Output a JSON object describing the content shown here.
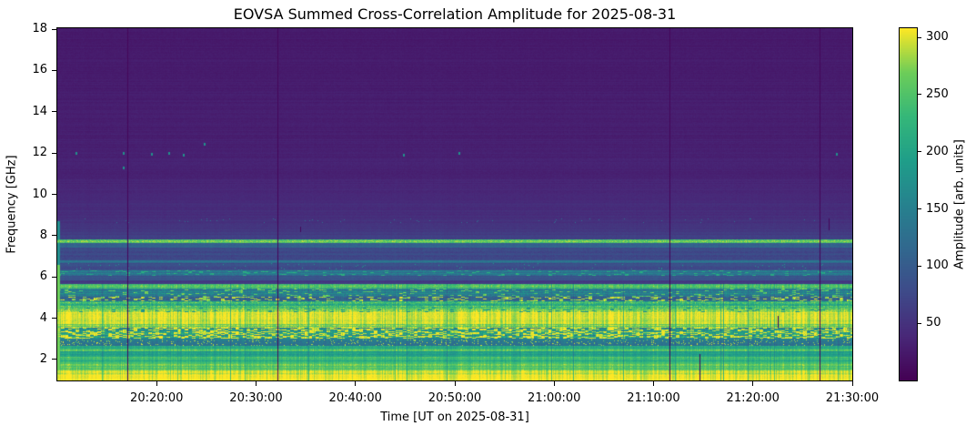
{
  "title": "EOVSA Summed Cross-Correlation Amplitude for 2025-08-31",
  "figure": {
    "background_color": "#ffffff",
    "spine_color": "#000000",
    "colormap": "viridis"
  },
  "axes": {
    "x": {
      "label": "Time [UT on 2025-08-31]",
      "start_time": "20:10:00",
      "end_time": "21:30:00",
      "tick_labels": [
        "20:20:00",
        "20:30:00",
        "20:40:00",
        "20:50:00",
        "21:00:00",
        "21:10:00",
        "21:20:00",
        "21:30:00"
      ]
    },
    "y": {
      "label": "Frequency [GHz]",
      "min_ghz": 0.98,
      "max_ghz": 18.05,
      "tick_values": [
        2,
        4,
        6,
        8,
        10,
        12,
        14,
        16,
        18
      ]
    }
  },
  "colorbar": {
    "label": "Amplitude [arb. units]",
    "tick_values": [
      50,
      100,
      150,
      200,
      250,
      300
    ],
    "vmin": 0,
    "vmax": 308
  },
  "chart_data": {
    "type": "heatmap",
    "title": "EOVSA Summed Cross-Correlation Amplitude for 2025-08-31",
    "xlabel": "Time [UT on 2025-08-31]",
    "ylabel": "Frequency [GHz]",
    "x_range_ut": [
      "20:10:00",
      "21:30:00"
    ],
    "y_range_ghz": [
      0.98,
      18.05
    ],
    "amplitude_range": [
      0,
      308
    ],
    "colorbar_label": "Amplitude [arb. units]",
    "colormap_stops": [
      [
        0.0,
        "#440154"
      ],
      [
        0.125,
        "#482878"
      ],
      [
        0.25,
        "#3e4a89"
      ],
      [
        0.375,
        "#31688e"
      ],
      [
        0.5,
        "#26828e"
      ],
      [
        0.625,
        "#1f9e89"
      ],
      [
        0.75,
        "#35b779"
      ],
      [
        0.875,
        "#6dcd59"
      ],
      [
        1.0,
        "#fde725"
      ]
    ],
    "frequency_bands": [
      {
        "f": [
          18.05,
          13.0
        ],
        "amp": 24,
        "amp2": 30,
        "noise": 4
      },
      {
        "f": [
          13.0,
          11.0
        ],
        "amp": 30,
        "amp2": 33,
        "noise": 4
      },
      {
        "f": [
          11.0,
          9.6
        ],
        "amp": 34,
        "amp2": 40,
        "noise": 4
      },
      {
        "f": [
          9.6,
          8.85
        ],
        "amp": 43,
        "amp2": 47,
        "noise": 5
      },
      {
        "f": [
          8.85,
          8.6
        ],
        "amp": 50,
        "noise": 5,
        "speckle": "dot",
        "sp_p": 0.012,
        "sp_amp": 120
      },
      {
        "f": [
          8.6,
          8.05
        ],
        "amp": 52,
        "amp2": 60,
        "noise": 5
      },
      {
        "f": [
          8.05,
          7.8
        ],
        "amp": 66,
        "noise": 6
      },
      {
        "f": [
          7.8,
          7.65
        ],
        "amp": 250,
        "noise": 28
      },
      {
        "f": [
          7.65,
          7.4
        ],
        "amp": 110,
        "noise": 12
      },
      {
        "f": [
          7.4,
          6.8
        ],
        "amp": 78,
        "noise": 9
      },
      {
        "f": [
          6.8,
          6.65
        ],
        "amp": 128,
        "noise": 14
      },
      {
        "f": [
          6.65,
          6.3
        ],
        "amp": 82,
        "noise": 9,
        "speckle": "dot",
        "sp_p": 0.01,
        "sp_amp": 180
      },
      {
        "f": [
          6.3,
          6.07
        ],
        "amp": 135,
        "noise": 22,
        "speckle": "dash",
        "sp_p": 0.12,
        "sp_amp": 210
      },
      {
        "f": [
          6.07,
          5.85
        ],
        "amp": 88,
        "noise": 9
      },
      {
        "f": [
          5.85,
          5.67
        ],
        "amp": 58,
        "noise": 6
      },
      {
        "f": [
          5.67,
          5.45
        ],
        "amp": 252,
        "noise": 22
      },
      {
        "f": [
          5.45,
          5.05
        ],
        "amp": 150,
        "noise": 28,
        "speckle": "dash",
        "sp_p": 0.1,
        "sp_amp": 260
      },
      {
        "f": [
          5.05,
          4.8
        ],
        "amp": 118,
        "noise": 22,
        "speckle": "dash",
        "sp_p": 0.28,
        "sp_amp": 285
      },
      {
        "f": [
          4.8,
          4.5
        ],
        "amp": 235,
        "noise": 38
      },
      {
        "f": [
          4.5,
          4.3
        ],
        "amp": 275,
        "noise": 26,
        "speckle": "dash",
        "sp_p": 0.1,
        "sp_amp": 180
      },
      {
        "f": [
          4.3,
          3.7
        ],
        "amp": 298,
        "noise": 10
      },
      {
        "f": [
          3.7,
          3.55
        ],
        "amp": 268,
        "noise": 26
      },
      {
        "f": [
          3.55,
          3.0
        ],
        "amp": 170,
        "noise": 40,
        "speckle": "dash",
        "sp_p": 0.45,
        "sp_amp": 300
      },
      {
        "f": [
          3.0,
          2.95
        ],
        "amp": 150,
        "noise": 12
      },
      {
        "f": [
          2.95,
          2.66
        ],
        "amp": 140,
        "noise": 16,
        "speckle": "dot",
        "sp_p": 0.08,
        "sp_amp": 285
      },
      {
        "f": [
          2.66,
          2.5
        ],
        "amp": 215,
        "noise": 20
      },
      {
        "f": [
          2.5,
          2.4
        ],
        "amp": 262,
        "noise": 18
      },
      {
        "f": [
          2.4,
          2.13
        ],
        "amp": 192,
        "noise": 18
      },
      {
        "f": [
          2.13,
          2.0
        ],
        "amp": 245,
        "noise": 16
      },
      {
        "f": [
          2.0,
          1.9
        ],
        "amp": 208,
        "noise": 14
      },
      {
        "f": [
          1.9,
          1.78
        ],
        "amp": 238,
        "noise": 14
      },
      {
        "f": [
          1.78,
          1.68
        ],
        "amp": 278,
        "noise": 14
      },
      {
        "f": [
          1.68,
          1.45
        ],
        "amp": 252,
        "noise": 16
      },
      {
        "f": [
          1.45,
          1.26
        ],
        "amp": 292,
        "noise": 10
      },
      {
        "f": [
          1.26,
          0.98
        ],
        "amp": 305,
        "noise": 5
      }
    ],
    "vertical_gap_lines_time_frac": [
      0.088,
      0.277,
      0.771,
      0.96
    ],
    "partial_gap_lines": [
      {
        "x_frac": 0.306,
        "f_range": [
          8.45,
          8.2
        ]
      },
      {
        "x_frac": 0.809,
        "f_range": [
          2.25,
          0.98
        ]
      },
      {
        "x_frac": 0.907,
        "f_range": [
          4.1,
          3.6
        ]
      },
      {
        "x_frac": 0.971,
        "f_range": [
          8.85,
          8.3
        ]
      }
    ],
    "bright_spots": [
      {
        "x_frac": 0.023,
        "f_ghz": 12.05
      },
      {
        "x_frac": 0.082,
        "f_ghz": 12.05
      },
      {
        "x_frac": 0.083,
        "f_ghz": 11.35
      },
      {
        "x_frac": 0.118,
        "f_ghz": 12.0
      },
      {
        "x_frac": 0.14,
        "f_ghz": 12.05
      },
      {
        "x_frac": 0.158,
        "f_ghz": 11.95
      },
      {
        "x_frac": 0.184,
        "f_ghz": 12.5
      },
      {
        "x_frac": 0.435,
        "f_ghz": 11.95
      },
      {
        "x_frac": 0.505,
        "f_ghz": 12.05
      },
      {
        "x_frac": 0.98,
        "f_ghz": 12.0
      }
    ],
    "bright_spot_amp": 175,
    "gap_line_amp": 6,
    "left_edge_strip": {
      "columns": 3,
      "f_below_ghz": 8.7,
      "amp_low": 268,
      "amp_high": 170,
      "split_ghz": 6.6
    }
  }
}
